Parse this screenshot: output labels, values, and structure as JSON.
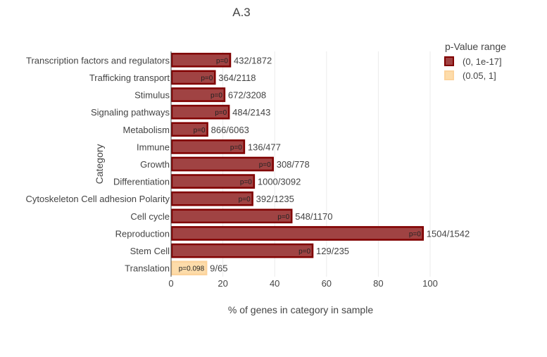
{
  "chart_data": {
    "type": "bar",
    "orientation": "horizontal",
    "title": "A.3",
    "xlabel": "% of genes in category in sample",
    "ylabel": "Category",
    "xlim": [
      0,
      100
    ],
    "xticks": [
      0,
      20,
      40,
      60,
      80,
      100
    ],
    "grid": true,
    "legend": {
      "title": "p-Value range",
      "placement": "top-right",
      "entries": [
        {
          "name": "(0, 1e-17]",
          "fill": "#a04343",
          "stroke": "#800000"
        },
        {
          "name": "(0.05, 1]",
          "fill": "#fddcaa",
          "stroke": "#fcd39c"
        }
      ]
    },
    "categories": [
      "Transcription factors and regulators",
      "Trafficking transport",
      "Stimulus",
      "Signaling pathways",
      "Metabolism",
      "Immune",
      "Growth",
      "Differentiation",
      "Cytoskeleton Cell adhesion Polarity",
      "Cell cycle",
      "Reproduction",
      "Stem Cell",
      "Translation"
    ],
    "values": [
      23.1,
      17.2,
      20.9,
      22.6,
      14.3,
      28.5,
      39.6,
      32.3,
      31.7,
      46.8,
      97.5,
      54.9,
      13.9
    ],
    "counts": [
      "432/1872",
      "364/2118",
      "672/3208",
      "484/2143",
      "866/6063",
      "136/477",
      "308/778",
      "1000/3092",
      "392/1235",
      "548/1170",
      "1504/1542",
      "129/235",
      "9/65"
    ],
    "pvalue_labels": [
      "p=0",
      "p=0",
      "p=0",
      "p=0",
      "p=0",
      "p=0",
      "p=0",
      "p=0",
      "p=0",
      "p=0",
      "p=0",
      "p=0",
      "p=0.098"
    ],
    "pvalue_group": [
      0,
      0,
      0,
      0,
      0,
      0,
      0,
      0,
      0,
      0,
      0,
      0,
      1
    ]
  }
}
